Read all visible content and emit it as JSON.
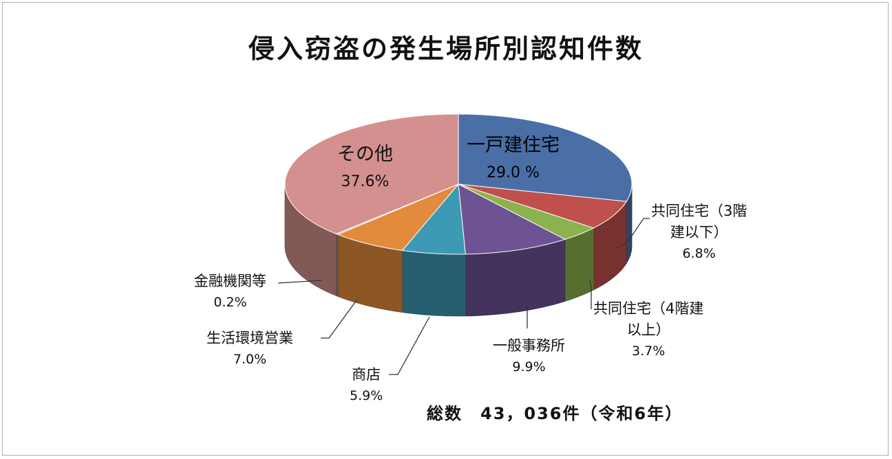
{
  "chart_data": {
    "type": "pie",
    "title": "侵入窃盗の発生場所別認知件数",
    "subtitle": "総数　43，036件（令和6年）",
    "slices": [
      {
        "label": "一戸建住宅",
        "value": 29.0,
        "value_label": "29.0 %",
        "color": "#4a6fa6"
      },
      {
        "label": "共同住宅（3階建以下）",
        "value": 6.8,
        "value_label": "6.8%",
        "color": "#c0504d"
      },
      {
        "label": "共同住宅（4階建以上）",
        "value": 3.7,
        "value_label": "3.7%",
        "color": "#8cb24f"
      },
      {
        "label": "一般事務所",
        "value": 9.9,
        "value_label": "9.9%",
        "color": "#6d5294"
      },
      {
        "label": "商店",
        "value": 5.9,
        "value_label": "5.9%",
        "color": "#3d9ab4"
      },
      {
        "label": "生活環境営業",
        "value": 7.0,
        "value_label": "7.0%",
        "color": "#e28b3c"
      },
      {
        "label": "金融機関等",
        "value": 0.2,
        "value_label": "0.2%",
        "color": "#7e90ad"
      },
      {
        "label": "その他",
        "value": 37.6,
        "value_label": "37.6%",
        "color": "#d4908e"
      }
    ]
  },
  "labels": {
    "ikko_name": "一戸建住宅",
    "ikko_pct": "29.0 %",
    "kyodo3_line1": "共同住宅（3階",
    "kyodo3_line2": "建以下）",
    "kyodo3_pct": "6.8%",
    "kyodo4_line1": "共同住宅（4階建",
    "kyodo4_line2": "以上）",
    "kyodo4_pct": "3.7%",
    "jimusho_name": "一般事務所",
    "jimusho_pct": "9.9%",
    "shoten_name": "商店",
    "shoten_pct": "5.9%",
    "seikatsu_name": "生活環境営業",
    "seikatsu_pct": "7.0%",
    "kinyu_name": "金融機関等",
    "kinyu_pct": "0.2%",
    "sonota_name": "その他",
    "sonota_pct": "37.6%"
  }
}
